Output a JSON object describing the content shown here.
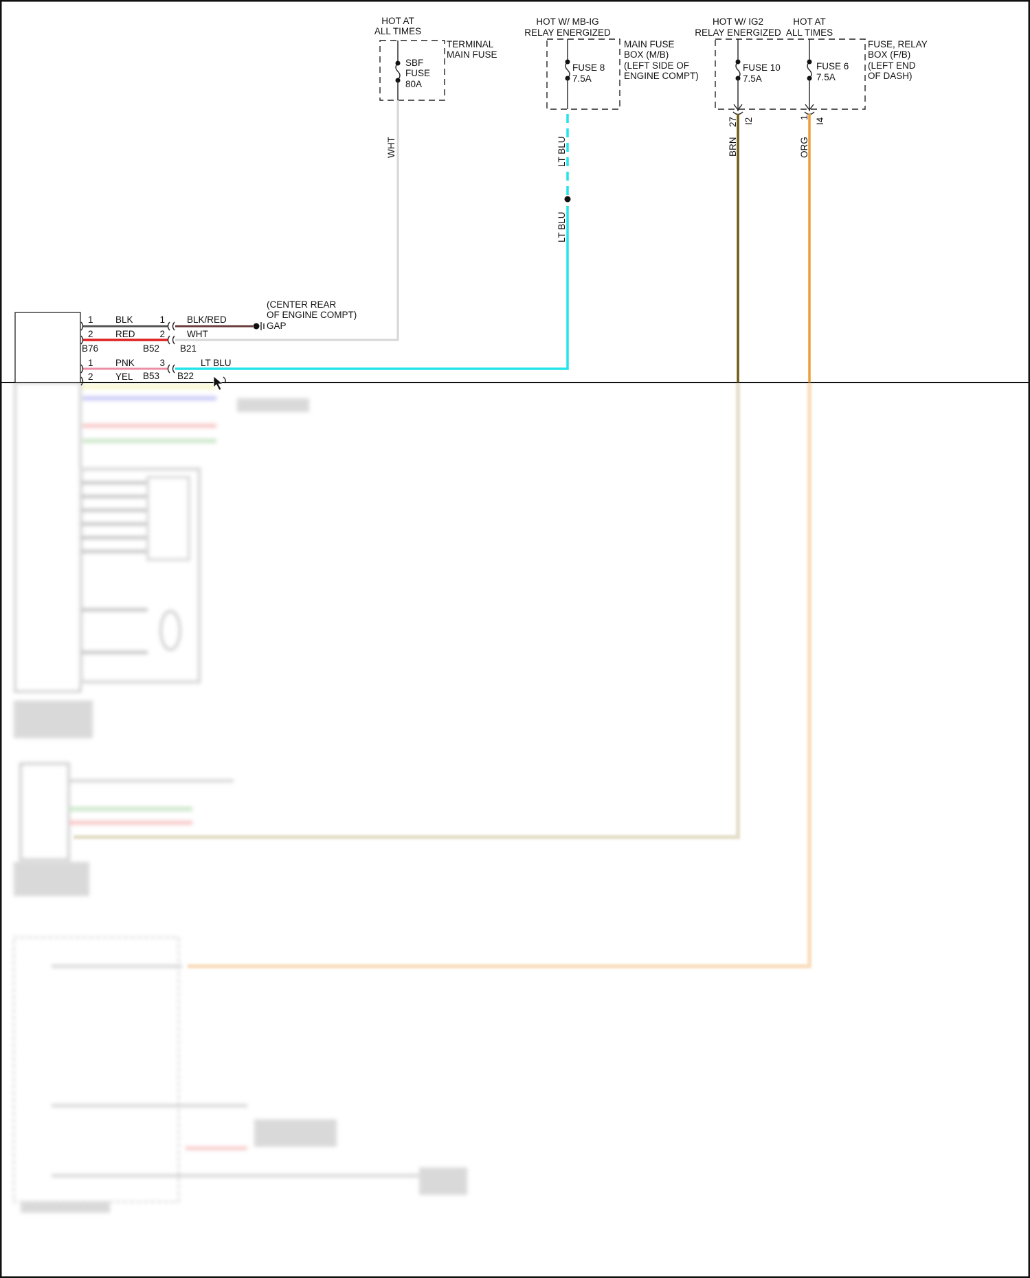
{
  "sources": [
    {
      "hot_label": [
        "HOT AT",
        "ALL TIMES"
      ],
      "fuse_label": [
        "SBF",
        "FUSE",
        "80A"
      ],
      "box_label": [
        "TERMINAL",
        "MAIN FUSE"
      ]
    },
    {
      "hot_label": [
        "HOT W/ MB-IG",
        "RELAY ENERGIZED"
      ],
      "fuse_label": [
        "FUSE 8",
        "7.5A"
      ],
      "box_label": [
        "MAIN FUSE",
        "BOX (M/B)",
        "(LEFT SIDE OF",
        "ENGINE COMPT)"
      ]
    },
    {
      "hot_label": [
        "HOT W/ IG2",
        "RELAY ENERGIZED"
      ],
      "fuse_label": [
        "FUSE 10",
        "7.5A"
      ],
      "pin": "27",
      "connector": "I2",
      "wire": "BRN"
    },
    {
      "hot_label": [
        "HOT AT",
        "ALL TIMES"
      ],
      "fuse_label": [
        "FUSE 6",
        "7.5A"
      ],
      "pin": "1",
      "connector": "I4",
      "wire": "ORG"
    }
  ],
  "fb_box_label": [
    "FUSE, RELAY",
    "BOX (F/B)",
    "(LEFT END",
    "OF DASH)"
  ],
  "vertical_wires": {
    "wht": "WHT",
    "ltblu_upper": "LT BLU",
    "ltblu_lower": "LT BLU"
  },
  "harness": {
    "rows": [
      {
        "pin_left": "1",
        "color_left": "BLK",
        "pin_right": "1",
        "color_right": "BLK/RED"
      },
      {
        "pin_left": "2",
        "color_left": "RED",
        "pin_right": "2",
        "color_right": "WHT"
      },
      {
        "pin_left": "1",
        "color_left": "PNK",
        "pin_right": "3",
        "color_right": "LT BLU"
      },
      {
        "pin_left": "2",
        "color_left": "YEL"
      }
    ],
    "connectors": [
      "B76",
      "B52",
      "B21",
      "B53",
      "B22"
    ],
    "ground_label": [
      "(CENTER REAR",
      "OF ENGINE COMPT)",
      "GAP"
    ]
  },
  "colors": {
    "wht": "#d6d6d6",
    "ltblu": "#22e4ea",
    "brn": "#6e5c12",
    "org": "#eb9e3c",
    "blk": "#555555",
    "red": "#e01f1f",
    "pnk": "#ec8fa4",
    "blkred": "#6b3d3d",
    "yel": "#f4ef9a"
  }
}
